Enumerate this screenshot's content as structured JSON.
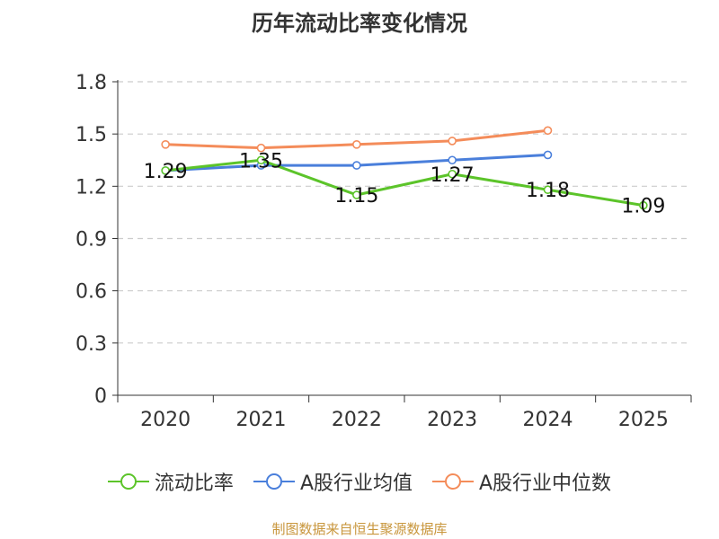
{
  "title": "历年流动比率变化情况",
  "source": "制图数据来自恒生聚源数据库",
  "chart_data": {
    "type": "line",
    "title": "历年流动比率变化情况",
    "categories": [
      "2020",
      "2021",
      "2022",
      "2023",
      "2024",
      "2025"
    ],
    "ylim": [
      0,
      1.8
    ],
    "yticks": [
      0,
      0.3,
      0.6,
      0.9,
      1.2,
      1.5,
      1.8
    ],
    "ytick_labels": [
      "0",
      "0.3",
      "0.6",
      "0.9",
      "1.2",
      "1.5",
      "1.8"
    ],
    "grid": true,
    "legend_position": "bottom",
    "series": [
      {
        "name": "流动比率",
        "color": "#5cc42a",
        "values": [
          1.29,
          1.35,
          1.15,
          1.27,
          1.18,
          1.09
        ],
        "labels": [
          "1.29",
          "1.35",
          "1.15",
          "1.27",
          "1.18",
          "1.09"
        ]
      },
      {
        "name": "A股行业均值",
        "color": "#4a7fdb",
        "values": [
          1.29,
          1.32,
          1.32,
          1.35,
          1.38,
          null
        ]
      },
      {
        "name": "A股行业中位数",
        "color": "#f48c5a",
        "values": [
          1.44,
          1.42,
          1.44,
          1.46,
          1.52,
          null
        ]
      }
    ]
  }
}
